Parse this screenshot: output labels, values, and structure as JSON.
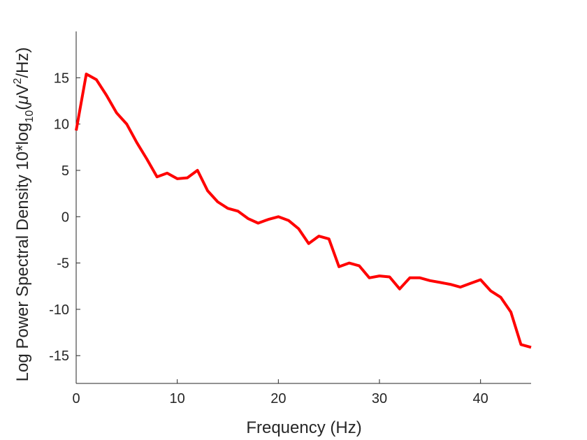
{
  "chart_data": {
    "type": "line",
    "xlabel": "Frequency (Hz)",
    "ylabel": {
      "prefix": "Log Power Spectral Density 10*log",
      "sub": "10",
      "paren_open": "(",
      "mu": "μ",
      "unit_v": "V",
      "sup": "2",
      "suffix": "/Hz)"
    },
    "xlim": [
      0,
      45
    ],
    "ylim": [
      -18,
      20
    ],
    "x_ticks": [
      0,
      10,
      20,
      30,
      40
    ],
    "y_ticks": [
      -15,
      -10,
      -5,
      0,
      5,
      10,
      15
    ],
    "grid": false,
    "series": [
      {
        "color": "#ff0000",
        "x": [
          0,
          1,
          2,
          3,
          4,
          5,
          6,
          7,
          8,
          9,
          10,
          11,
          12,
          13,
          14,
          15,
          16,
          17,
          18,
          19,
          20,
          21,
          22,
          23,
          24,
          25,
          26,
          27,
          28,
          29,
          30,
          31,
          32,
          33,
          34,
          35,
          36,
          37,
          38,
          39,
          40,
          41,
          42,
          43,
          44,
          45
        ],
        "y": [
          9.3,
          15.4,
          14.8,
          13.1,
          11.2,
          10.0,
          8.0,
          6.2,
          4.3,
          4.7,
          4.1,
          4.2,
          5.0,
          2.8,
          1.6,
          0.9,
          0.6,
          -0.2,
          -0.7,
          -0.3,
          0.0,
          -0.4,
          -1.3,
          -2.9,
          -2.1,
          -2.4,
          -5.4,
          -5.0,
          -5.3,
          -6.6,
          -6.4,
          -6.5,
          -7.8,
          -6.6,
          -6.6,
          -6.9,
          -7.1,
          -7.3,
          -7.6,
          -7.2,
          -6.8,
          -8.0,
          -8.7,
          -10.3,
          -13.8,
          -14.1
        ]
      }
    ]
  }
}
